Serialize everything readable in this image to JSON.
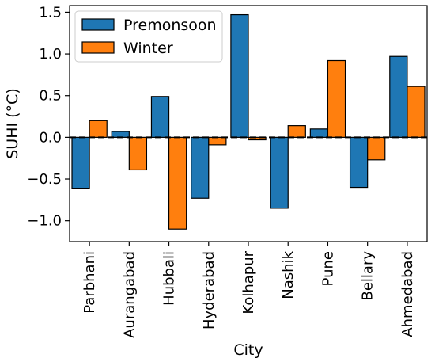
{
  "chart_data": {
    "type": "bar",
    "title": "",
    "xlabel": "City",
    "ylabel": "SUHI (°C)",
    "categories": [
      "Parbhani",
      "Aurangabad",
      "Hubbali",
      "Hyderabad",
      "Kolhapur",
      "Nashik",
      "Pune",
      "Bellary",
      "Ahmedabad"
    ],
    "series": [
      {
        "name": "Premonsoon",
        "color": "#1f77b4",
        "values": [
          -0.61,
          0.07,
          0.49,
          -0.73,
          1.47,
          -0.85,
          0.1,
          -0.6,
          0.97
        ]
      },
      {
        "name": "Winter",
        "color": "#ff7f0e",
        "values": [
          0.2,
          -0.39,
          -1.1,
          -0.09,
          -0.03,
          0.14,
          0.92,
          -0.27,
          0.61
        ]
      }
    ],
    "ylim": [
      -1.25,
      1.58
    ],
    "yticks": [
      -1.0,
      -0.5,
      0.0,
      0.5,
      1.0,
      1.5
    ],
    "ytick_labels": [
      "−1.0",
      "−0.5",
      "0.0",
      "0.5",
      "1.0",
      "1.5"
    ],
    "zero_line": "dashed",
    "grid": false,
    "legend_position": "top-left"
  }
}
